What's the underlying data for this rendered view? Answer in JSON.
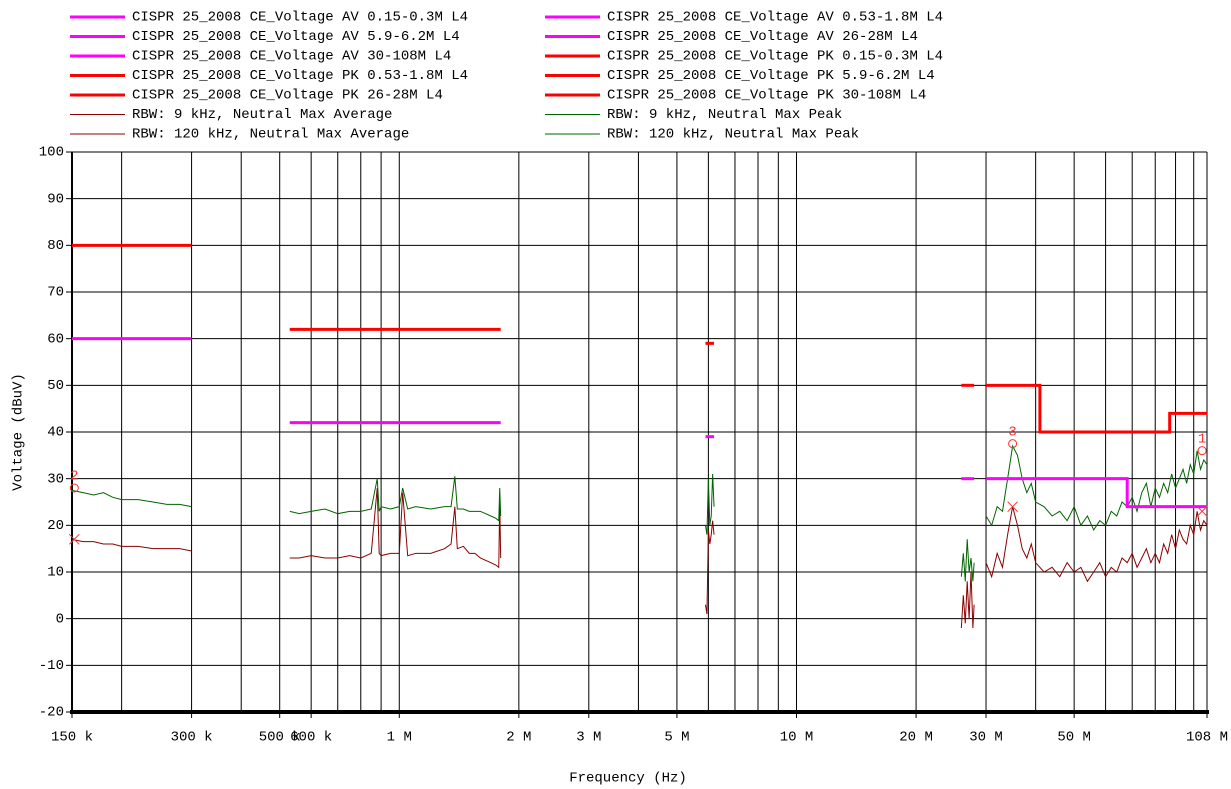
{
  "chart_data": {
    "type": "line",
    "x_label": "Frequency (Hz)",
    "y_label": "Voltage (dBuV)",
    "log_x": true,
    "grid": true,
    "xlim": [
      150000,
      108000000
    ],
    "ylim": [
      -20,
      100
    ],
    "yticks": [
      -20,
      -10,
      0,
      10,
      20,
      30,
      40,
      50,
      60,
      70,
      80,
      90,
      100
    ],
    "xticks": [
      {
        "value": 150000,
        "label": "150 k"
      },
      {
        "value": 300000,
        "label": "300 k"
      },
      {
        "value": 500000,
        "label": "500 k"
      },
      {
        "value": 600000,
        "label": "600 k"
      },
      {
        "value": 1000000,
        "label": "1 M"
      },
      {
        "value": 2000000,
        "label": "2 M"
      },
      {
        "value": 3000000,
        "label": "3 M"
      },
      {
        "value": 5000000,
        "label": "5 M"
      },
      {
        "value": 10000000,
        "label": "10 M"
      },
      {
        "value": 20000000,
        "label": "20 M"
      },
      {
        "value": 30000000,
        "label": "30 M"
      },
      {
        "value": 50000000,
        "label": "50 M"
      },
      {
        "value": 108000000,
        "label": "108 M"
      }
    ],
    "xgrid": [
      150000,
      200000,
      300000,
      400000,
      500000,
      600000,
      700000,
      800000,
      900000,
      1000000,
      2000000,
      3000000,
      4000000,
      5000000,
      6000000,
      7000000,
      8000000,
      9000000,
      10000000,
      20000000,
      30000000,
      40000000,
      50000000,
      60000000,
      70000000,
      80000000,
      90000000,
      100000000,
      108000000
    ],
    "series": [
      {
        "name": "CISPR 25_2008 CE_Voltage AV 0.15-0.3M L4",
        "color": "#ff00ff",
        "width": 3,
        "x": [
          150000,
          300000
        ],
        "values": [
          60,
          60
        ]
      },
      {
        "name": "CISPR 25_2008 CE_Voltage AV 0.53-1.8M L4",
        "color": "#ff00ff",
        "width": 3,
        "x": [
          530000,
          1800000
        ],
        "values": [
          42,
          42
        ]
      },
      {
        "name": "CISPR 25_2008 CE_Voltage AV 5.9-6.2M L4",
        "color": "#ff00ff",
        "width": 3,
        "x": [
          5900000,
          6200000
        ],
        "values": [
          39,
          39
        ]
      },
      {
        "name": "CISPR 25_2008 CE_Voltage AV 26-28M L4",
        "color": "#ff00ff",
        "width": 3,
        "x": [
          26000000,
          28000000
        ],
        "values": [
          30,
          30
        ]
      },
      {
        "name": "CISPR 25_2008 CE_Voltage AV 30-108M L4",
        "color": "#ff00ff",
        "width": 3,
        "x": [
          30000000,
          68000000,
          68000000,
          108000000
        ],
        "values": [
          30,
          30,
          24,
          24
        ]
      },
      {
        "name": "CISPR 25_2008 CE_Voltage PK 0.15-0.3M L4",
        "color": "#ff0000",
        "width": 3,
        "x": [
          150000,
          300000
        ],
        "values": [
          80,
          80
        ]
      },
      {
        "name": "CISPR 25_2008 CE_Voltage PK 0.53-1.8M L4",
        "color": "#ff0000",
        "width": 3,
        "x": [
          530000,
          1800000
        ],
        "values": [
          62,
          62
        ]
      },
      {
        "name": "CISPR 25_2008 CE_Voltage PK 5.9-6.2M L4",
        "color": "#ff0000",
        "width": 3,
        "x": [
          5900000,
          6200000
        ],
        "values": [
          59,
          59
        ]
      },
      {
        "name": "CISPR 25_2008 CE_Voltage PK 26-28M L4",
        "color": "#ff0000",
        "width": 3,
        "x": [
          26000000,
          28000000
        ],
        "values": [
          50,
          50
        ]
      },
      {
        "name": "CISPR 25_2008 CE_Voltage PK 30-108M L4",
        "color": "#ff0000",
        "width": 3,
        "x": [
          30000000,
          41000000,
          41000000,
          87000000,
          87000000,
          108000000
        ],
        "values": [
          50,
          50,
          40,
          40,
          44,
          44
        ]
      },
      {
        "name": "RBW: 9 kHz, Neutral Max Average",
        "color": "#8b0000",
        "width": 1,
        "x": [
          150000,
          160000,
          170000,
          180000,
          190000,
          200000,
          220000,
          240000,
          260000,
          280000,
          300000,
          null,
          530000,
          560000,
          600000,
          650000,
          700000,
          750000,
          800000,
          850000,
          880000,
          890000,
          900000,
          950000,
          1000000,
          1020000,
          1050000,
          1100000,
          1200000,
          1300000,
          1350000,
          1380000,
          1400000,
          1450000,
          1500000,
          1550000,
          1600000,
          1700000,
          1750000,
          1780000,
          1790000,
          1800000,
          null,
          5900000,
          5950000,
          6000000,
          6050000,
          6100000,
          6150000,
          6200000
        ],
        "values": [
          17,
          16.5,
          16.5,
          16,
          16,
          15.5,
          15.5,
          15,
          15,
          15,
          14.5,
          null,
          13,
          13,
          13.5,
          13,
          13,
          13.5,
          13,
          14,
          28,
          14,
          13.5,
          14,
          14,
          27,
          13.5,
          14,
          14,
          15,
          16,
          24,
          15,
          15.5,
          14,
          14,
          13,
          12,
          11.5,
          11,
          25,
          13,
          null,
          3,
          1,
          19,
          16,
          18,
          21,
          18
        ]
      },
      {
        "name": "RBW: 9 kHz, Neutral Max Peak",
        "color": "#006400",
        "width": 1,
        "x": [
          150000,
          160000,
          170000,
          180000,
          190000,
          200000,
          220000,
          240000,
          260000,
          280000,
          300000,
          null,
          530000,
          560000,
          600000,
          650000,
          700000,
          750000,
          800000,
          850000,
          880000,
          890000,
          900000,
          950000,
          1000000,
          1020000,
          1050000,
          1100000,
          1200000,
          1300000,
          1350000,
          1380000,
          1400000,
          1450000,
          1500000,
          1550000,
          1600000,
          1700000,
          1750000,
          1780000,
          1790000,
          1800000,
          null,
          5900000,
          5950000,
          6000000,
          6050000,
          6100000,
          6150000,
          6200000
        ],
        "values": [
          27.5,
          27,
          26.5,
          27,
          26,
          25.5,
          25.5,
          25,
          24.5,
          24.5,
          24,
          null,
          23,
          22.5,
          23,
          23.5,
          22.5,
          23,
          23,
          23.5,
          30,
          23,
          24,
          23.5,
          24,
          28,
          23.5,
          24,
          23.5,
          24,
          24,
          30.5,
          23.5,
          23.5,
          23,
          23,
          23,
          22,
          21.5,
          21,
          28,
          22,
          null,
          20,
          18,
          30,
          20,
          22,
          31,
          24
        ]
      },
      {
        "name": "RBW: 120 kHz, Neutral Max Average",
        "color": "#8b0000",
        "width": 1,
        "x": [
          26000000,
          26300000,
          26600000,
          26900000,
          27200000,
          27500000,
          27800000,
          28000000,
          null,
          30000000,
          31000000,
          32000000,
          33000000,
          34000000,
          35000000,
          36000000,
          37000000,
          38000000,
          39000000,
          40000000,
          42000000,
          44000000,
          46000000,
          48000000,
          50000000,
          52000000,
          54000000,
          56000000,
          58000000,
          60000000,
          62000000,
          64000000,
          66000000,
          68000000,
          70000000,
          72000000,
          74000000,
          76000000,
          78000000,
          80000000,
          82000000,
          84000000,
          86000000,
          88000000,
          90000000,
          92000000,
          94000000,
          96000000,
          98000000,
          100000000,
          102000000,
          104000000,
          106000000,
          108000000
        ],
        "values": [
          -2,
          5,
          -1,
          8,
          0,
          10,
          -2,
          3,
          null,
          12,
          9,
          14,
          11,
          18,
          24,
          20,
          15,
          13,
          16,
          12,
          10,
          11,
          9,
          12,
          10,
          11,
          8,
          10,
          12,
          9,
          11,
          10,
          13,
          12,
          14,
          11,
          13,
          15,
          12,
          14,
          12,
          16,
          14,
          18,
          15,
          19,
          17,
          16,
          20,
          18,
          23,
          19,
          21,
          20
        ]
      },
      {
        "name": "RBW: 120 kHz, Neutral Max Peak",
        "color": "#006400",
        "width": 1,
        "x": [
          26000000,
          26300000,
          26600000,
          26900000,
          27200000,
          27500000,
          27800000,
          28000000,
          null,
          30000000,
          31000000,
          32000000,
          33000000,
          34000000,
          35000000,
          36000000,
          37000000,
          38000000,
          39000000,
          40000000,
          42000000,
          44000000,
          46000000,
          48000000,
          50000000,
          52000000,
          54000000,
          56000000,
          58000000,
          60000000,
          62000000,
          64000000,
          66000000,
          68000000,
          70000000,
          72000000,
          74000000,
          76000000,
          78000000,
          80000000,
          82000000,
          84000000,
          86000000,
          88000000,
          90000000,
          92000000,
          94000000,
          96000000,
          98000000,
          100000000,
          102000000,
          104000000,
          106000000,
          108000000
        ],
        "values": [
          9,
          14,
          8,
          17,
          10,
          13,
          8,
          12,
          null,
          22,
          20,
          24,
          23,
          30,
          37,
          35,
          30,
          27,
          29,
          25,
          24,
          22,
          23,
          21,
          24,
          20,
          22,
          19,
          21,
          20,
          23,
          22,
          25,
          24,
          26,
          23,
          27,
          29,
          24,
          28,
          26,
          29,
          27,
          31,
          28,
          30,
          32,
          29,
          33,
          31,
          36,
          32,
          34,
          33
        ]
      }
    ],
    "markers": [
      {
        "label": "1",
        "x": 105000000,
        "peak": 36,
        "average": 23
      },
      {
        "label": "2",
        "x": 152000,
        "peak": 28,
        "average": 17
      },
      {
        "label": "3",
        "x": 35000000,
        "peak": 37.5,
        "average": 24
      }
    ]
  }
}
